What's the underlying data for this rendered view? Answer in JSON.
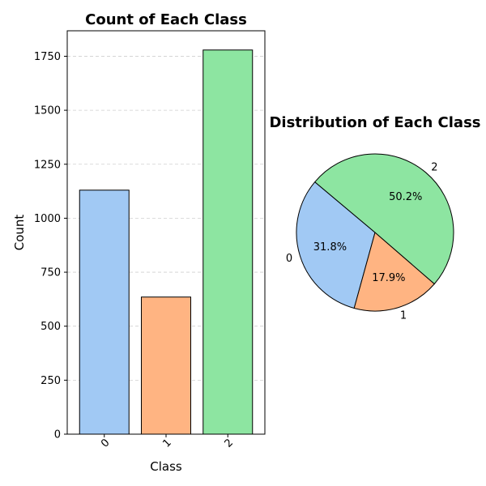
{
  "chart_data": [
    {
      "type": "bar",
      "title": "Count of Each Class",
      "xlabel": "Class",
      "ylabel": "Count",
      "categories": [
        "0",
        "1",
        "2"
      ],
      "values": [
        1130,
        635,
        1779
      ],
      "colors": [
        "#a1c9f4",
        "#ffb482",
        "#8de5a1"
      ],
      "ylim": [
        0,
        1868
      ],
      "yticks": [
        0,
        250,
        500,
        750,
        1000,
        1250,
        1500,
        1750
      ],
      "grid": "y-dashed",
      "xtick_rotation": 45
    },
    {
      "type": "pie",
      "title": "Distribution of Each Class",
      "labels": [
        "0",
        "1",
        "2"
      ],
      "values": [
        31.8,
        17.9,
        50.2
      ],
      "autopct": [
        "31.8%",
        "17.9%",
        "50.2%"
      ],
      "colors": [
        "#a1c9f4",
        "#ffb482",
        "#8de5a1"
      ]
    }
  ]
}
